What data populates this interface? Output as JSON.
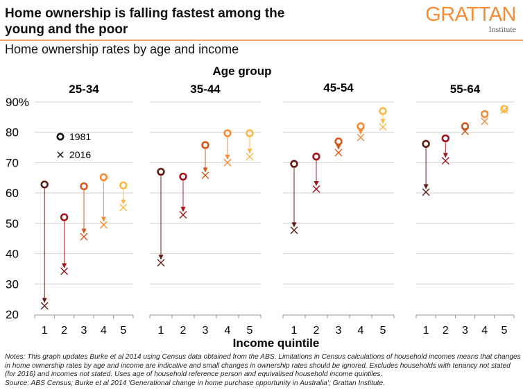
{
  "header": {
    "title": "Home ownership is falling fastest among the young and the poor",
    "subtitle": "Home ownership rates by age and income",
    "logo_main": "GRATTAN",
    "logo_sub": "Institute",
    "accent": "#f68b33"
  },
  "notes": {
    "notes_text": "Notes: This graph updates Burke et al 2014 using Census data obtained from the ABS. Limitations in Census calculations of household incomes means that changes in home ownership rates by age and income are indicative and small changes in ownership rates should be ignored. Excludes households with tenancy not stated (for 2016) and incomes not stated. Uses age of household reference person and equivalised household income quintiles.",
    "source_text": "Source: ABS Census; Burke et al 2014 ‘Generational change in home purchase opportunity in Australia’; Grattan Institute."
  },
  "chart_data": {
    "type": "scatter",
    "title": "Home ownership rates by age and income",
    "group_label": "Age group",
    "xlabel": "Income quintile",
    "ylabel": "",
    "ylim": [
      20,
      90
    ],
    "yticks": [
      20,
      30,
      40,
      50,
      60,
      70,
      80,
      90
    ],
    "ytick_labels": [
      "20",
      "30",
      "40",
      "50",
      "60",
      "70",
      "80",
      "90%"
    ],
    "grid": true,
    "legend": {
      "placement": "top-left of first panel",
      "entries": [
        {
          "label": "1981",
          "marker": "circle"
        },
        {
          "label": "2016",
          "marker": "x"
        }
      ]
    },
    "categories": [
      "1",
      "2",
      "3",
      "4",
      "5"
    ],
    "quintile_colors": [
      "#621a12",
      "#a0141e",
      "#d4581b",
      "#f68b33",
      "#fbb947"
    ],
    "panels": [
      {
        "age_group": "25-34",
        "series": [
          {
            "name": "1981",
            "values": [
              62.8,
              52.0,
              62.2,
              65.2,
              62.5
            ]
          },
          {
            "name": "2016",
            "values": [
              22.8,
              34.2,
              45.6,
              49.5,
              55.2
            ]
          }
        ]
      },
      {
        "age_group": "35-44",
        "series": [
          {
            "name": "1981",
            "values": [
              67.0,
              65.4,
              75.8,
              79.7,
              79.7
            ]
          },
          {
            "name": "2016",
            "values": [
              37.0,
              52.8,
              65.8,
              70.0,
              72.0
            ]
          }
        ]
      },
      {
        "age_group": "45-54",
        "series": [
          {
            "name": "1981",
            "values": [
              69.6,
              72.0,
              77.0,
              82.0,
              87.0
            ]
          },
          {
            "name": "2016",
            "values": [
              47.7,
              61.3,
              73.3,
              78.3,
              81.8
            ]
          }
        ]
      },
      {
        "age_group": "55-64",
        "series": [
          {
            "name": "1981",
            "values": [
              76.2,
              78.0,
              82.0,
              86.0,
              87.7
            ]
          },
          {
            "name": "2016",
            "values": [
              60.3,
              70.6,
              80.3,
              83.6,
              87.3
            ]
          }
        ]
      }
    ]
  }
}
